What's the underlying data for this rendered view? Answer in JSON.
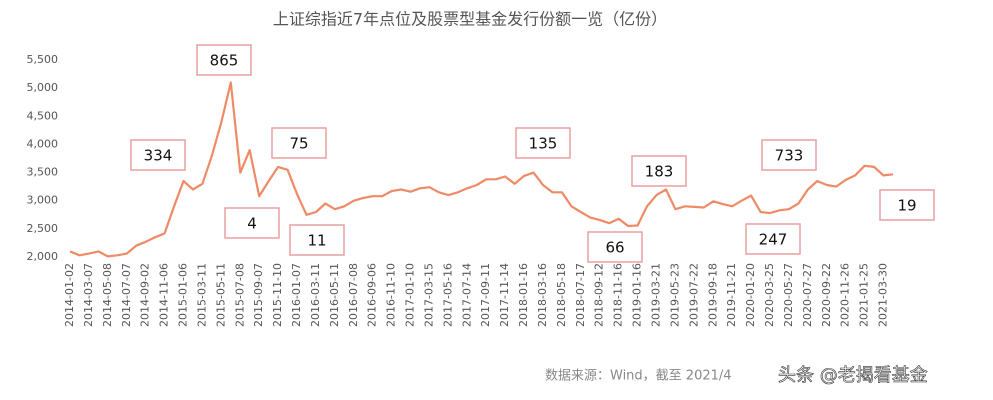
{
  "chart_data": {
    "type": "line",
    "title": "上证综指近7年点位及股票型基金发行份额一览（亿份）",
    "categories": [
      "2014-01-02",
      null,
      "2014-03-07",
      null,
      "2014-05-08",
      null,
      "2014-07-07",
      null,
      "2014-09-02",
      null,
      "2014-11-06",
      null,
      "2015-01-06",
      null,
      "2015-03-11",
      null,
      "2015-05-11",
      null,
      "2015-07-08",
      null,
      "2015-09-07",
      null,
      "2015-11-10",
      null,
      "2016-01-07",
      null,
      "2016-03-11",
      null,
      "2016-05-11",
      null,
      "2016-07-08",
      null,
      "2016-09-06",
      null,
      "2016-11-10",
      null,
      "2017-01-10",
      null,
      "2017-03-15",
      null,
      "2017-05-16",
      null,
      "2017-07-14",
      null,
      "2017-09-11",
      null,
      "2017-11-14",
      null,
      "2018-01-16",
      null,
      "2018-03-16",
      null,
      "2018-05-18",
      null,
      "2018-07-17",
      null,
      "2018-09-12",
      null,
      "2018-11-16",
      null,
      "2019-01-16",
      null,
      "2019-03-21",
      null,
      "2019-05-23",
      null,
      "2019-07-22",
      null,
      "2019-09-18",
      null,
      "2019-11-21",
      null,
      "2020-01-20",
      null,
      "2020-03-25",
      null,
      "2020-05-27",
      null,
      "2020-07-27",
      null,
      "2020-09-22",
      null,
      "2020-11-26",
      null,
      "2021-01-25",
      null,
      "2021-03-30",
      null
    ],
    "series": [
      {
        "name": "上证综指",
        "color": "#ee8a66",
        "values": [
          2100,
          2030,
          2060,
          2100,
          2010,
          2030,
          2060,
          2200,
          2270,
          2350,
          2420,
          2900,
          3350,
          3200,
          3300,
          3800,
          4400,
          5100,
          3500,
          3900,
          3080,
          3350,
          3600,
          3550,
          3120,
          2750,
          2800,
          2950,
          2850,
          2900,
          3000,
          3050,
          3080,
          3080,
          3170,
          3200,
          3160,
          3220,
          3240,
          3150,
          3100,
          3150,
          3220,
          3280,
          3380,
          3380,
          3430,
          3300,
          3440,
          3500,
          3280,
          3150,
          3150,
          2900,
          2800,
          2700,
          2660,
          2600,
          2680,
          2550,
          2560,
          2900,
          3100,
          3200,
          2850,
          2900,
          2890,
          2880,
          2990,
          2940,
          2900,
          3000,
          3090,
          2800,
          2780,
          2830,
          2850,
          2950,
          3200,
          3350,
          3280,
          3250,
          3370,
          3450,
          3620,
          3600,
          3450,
          3470
        ]
      }
    ],
    "ylim": [
      2000,
      5500
    ],
    "yticks": [
      {
        "value": 2000,
        "label": "2,000"
      },
      {
        "value": 2500,
        "label": "2,500"
      },
      {
        "value": 3000,
        "label": "3,000"
      },
      {
        "value": 3500,
        "label": "3,500"
      },
      {
        "value": 4000,
        "label": "4,000"
      },
      {
        "value": 4500,
        "label": "4,500"
      },
      {
        "value": 5000,
        "label": "5,000"
      },
      {
        "value": 5500,
        "label": "5,500"
      }
    ],
    "annotations": [
      334,
      865,
      4,
      75,
      11,
      135,
      66,
      183,
      247,
      733,
      19
    ],
    "source": "数据来源：Wind，截至 2021/4",
    "watermark": "头条 @老揭看基金"
  }
}
